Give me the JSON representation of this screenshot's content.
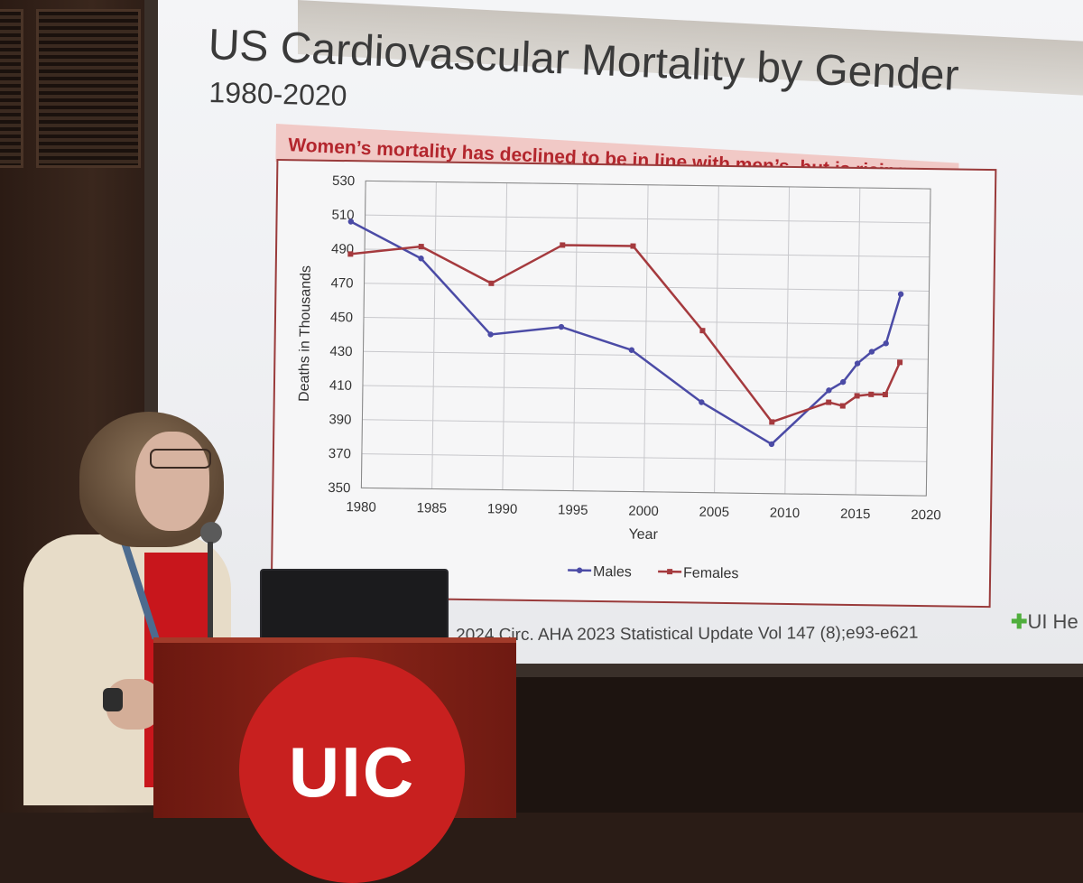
{
  "slide": {
    "title": "US Cardiovascular Mortality by Gender",
    "subtitle": "1980-2020",
    "banner": "Women’s mortality has declined to be in line with men’s, but is rising",
    "citation": "L 2024 Circ. AHA 2023 Statistical Update Vol 147 (8);e93-e621",
    "logo_text": "UI He",
    "logo_cross": "✚"
  },
  "podium": {
    "logo_text": "UIC"
  },
  "chart_data": {
    "type": "line",
    "title": "Women’s mortality has declined to be in line with men’s, but is rising",
    "xlabel": "Year",
    "ylabel": "Deaths in Thousands",
    "xlim": [
      1980,
      2020
    ],
    "ylim": [
      350,
      530
    ],
    "x_ticks": [
      1980,
      1985,
      1990,
      1995,
      2000,
      2005,
      2010,
      2015,
      2020
    ],
    "y_ticks": [
      350,
      370,
      390,
      410,
      430,
      450,
      470,
      490,
      510,
      530
    ],
    "grid": true,
    "legend": "bottom-center",
    "series": [
      {
        "name": "Males",
        "color": "#4b4ba6",
        "x": [
          1979,
          1984,
          1989,
          1994,
          1999,
          2004,
          2009,
          2013,
          2014,
          2015,
          2016,
          2017,
          2018
        ],
        "values": [
          506,
          485,
          441,
          446,
          433,
          403,
          379,
          411,
          416,
          427,
          434,
          439,
          468
        ]
      },
      {
        "name": "Females",
        "color": "#a53a3e",
        "x": [
          1979,
          1984,
          1989,
          1994,
          1999,
          2004,
          2009,
          2013,
          2014,
          2015,
          2016,
          2017,
          2018
        ],
        "values": [
          487,
          492,
          471,
          494,
          494,
          445,
          392,
          404,
          402,
          408,
          409,
          409,
          428
        ]
      }
    ]
  }
}
